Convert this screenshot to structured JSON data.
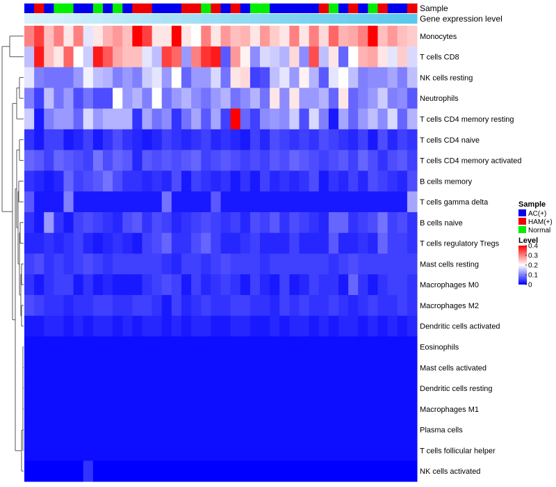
{
  "chart_data": {
    "type": "heatmap",
    "title": "",
    "annotation_labels": [
      "Sample",
      "Gene expression level"
    ],
    "rows": [
      "Monocytes",
      "T cells CD8",
      "NK cells resting",
      "Neutrophils",
      "T cells CD4 memory resting",
      "T cells CD4 naive",
      "T cells CD4 memory activated",
      "B cells memory",
      "T cells gamma delta",
      "B cells naive",
      "T cells regulatory  Tregs",
      "Mast cells resting",
      "Macrophages M0",
      "Macrophages M2",
      "Dendritic cells activated",
      "Eosinophils",
      "Mast cells activated",
      "Dendritic cells resting",
      "Macrophages M1",
      "Plasma cells",
      "T cells follicular helper",
      "NK cells activated"
    ],
    "samples": [
      "AC(+)",
      "HAM(+)",
      "AC(+)",
      "Normal",
      "Normal",
      "AC(+)",
      "AC(+)",
      "Normal",
      "AC(+)",
      "Normal",
      "AC(+)",
      "HAM(+)",
      "HAM(+)",
      "AC(+)",
      "AC(+)",
      "AC(+)",
      "HAM(+)",
      "HAM(+)",
      "Normal",
      "HAM(+)",
      "AC(+)",
      "HAM(+)",
      "AC(+)",
      "Normal",
      "Normal",
      "AC(+)",
      "AC(+)",
      "AC(+)",
      "AC(+)",
      "AC(+)",
      "HAM(+)",
      "Normal",
      "AC(+)",
      "HAM(+)",
      "AC(+)",
      "Normal",
      "HAM(+)",
      "AC(+)",
      "AC(+)",
      "HAM(+)"
    ],
    "gene_expression_level": [
      0.05,
      0.08,
      0.1,
      0.12,
      0.15,
      0.18,
      0.2,
      0.22,
      0.25,
      0.28,
      0.3,
      0.32,
      0.35,
      0.38,
      0.4,
      0.42,
      0.45,
      0.48,
      0.5,
      0.52,
      0.55,
      0.58,
      0.6,
      0.62,
      0.65,
      0.68,
      0.7,
      0.72,
      0.75,
      0.78,
      0.8,
      0.82,
      0.85,
      0.88,
      0.9,
      0.92,
      0.95,
      0.97,
      0.99,
      1.0
    ],
    "values": [
      [
        0.3,
        0.35,
        0.25,
        0.3,
        0.22,
        0.3,
        0.18,
        0.22,
        0.26,
        0.28,
        0.25,
        0.4,
        0.35,
        0.22,
        0.22,
        0.4,
        0.22,
        0.2,
        0.3,
        0.22,
        0.28,
        0.25,
        0.26,
        0.22,
        0.28,
        0.24,
        0.22,
        0.3,
        0.22,
        0.3,
        0.23,
        0.32,
        0.26,
        0.27,
        0.3,
        0.4,
        0.25,
        0.28,
        0.25,
        0.24
      ],
      [
        0.15,
        0.38,
        0.25,
        0.22,
        0.32,
        0.2,
        0.16,
        0.38,
        0.33,
        0.27,
        0.25,
        0.25,
        0.18,
        0.15,
        0.35,
        0.32,
        0.12,
        0.3,
        0.36,
        0.38,
        0.07,
        0.28,
        0.21,
        0.11,
        0.17,
        0.16,
        0.14,
        0.23,
        0.11,
        0.34,
        0.15,
        0.22,
        0.08,
        0.2,
        0.26,
        0.27,
        0.22,
        0.18,
        0.24,
        0.17
      ],
      [
        0.18,
        0.1,
        0.09,
        0.09,
        0.09,
        0.12,
        0.19,
        0.15,
        0.14,
        0.1,
        0.12,
        0.1,
        0.16,
        0.18,
        0.12,
        0.2,
        0.08,
        0.12,
        0.12,
        0.17,
        0.09,
        0.22,
        0.23,
        0.05,
        0.06,
        0.15,
        0.18,
        0.12,
        0.21,
        0.14,
        0.07,
        0.18,
        0.2,
        0.15,
        0.1,
        0.11,
        0.11,
        0.13,
        0.1,
        0.15
      ],
      [
        0.1,
        0.05,
        0.15,
        0.09,
        0.12,
        0.06,
        0.09,
        0.06,
        0.06,
        0.2,
        0.12,
        0.14,
        0.1,
        0.2,
        0.09,
        0.12,
        0.14,
        0.11,
        0.09,
        0.12,
        0.14,
        0.09,
        0.11,
        0.14,
        0.09,
        0.22,
        0.11,
        0.22,
        0.12,
        0.12,
        0.14,
        0.08,
        0.22,
        0.08,
        0.1,
        0.12,
        0.16,
        0.1,
        0.11,
        0.07
      ],
      [
        0.16,
        0.02,
        0.1,
        0.12,
        0.12,
        0.08,
        0.17,
        0.12,
        0.14,
        0.14,
        0.14,
        0.04,
        0.13,
        0.09,
        0.11,
        0.04,
        0.09,
        0.13,
        0.07,
        0.13,
        0.05,
        0.4,
        0.08,
        0.05,
        0.11,
        0.12,
        0.11,
        0.16,
        0.06,
        0.17,
        0.1,
        0.02,
        0.13,
        0.08,
        0.12,
        0.15,
        0.11,
        0.17,
        0.08,
        0.14
      ],
      [
        0.04,
        0.02,
        0.05,
        0.05,
        0.02,
        0.03,
        0.05,
        0.02,
        0.04,
        0.06,
        0.04,
        0.03,
        0.02,
        0.03,
        0.05,
        0.04,
        0.03,
        0.04,
        0.05,
        0.03,
        0.04,
        0.03,
        0.02,
        0.05,
        0.03,
        0.06,
        0.05,
        0.04,
        0.05,
        0.04,
        0.06,
        0.05,
        0.04,
        0.03,
        0.05,
        0.02,
        0.06,
        0.03,
        0.05,
        0.04
      ],
      [
        0.08,
        0.07,
        0.05,
        0.08,
        0.07,
        0.06,
        0.05,
        0.09,
        0.06,
        0.08,
        0.07,
        0.03,
        0.07,
        0.06,
        0.07,
        0.06,
        0.07,
        0.08,
        0.05,
        0.06,
        0.07,
        0.06,
        0.05,
        0.06,
        0.05,
        0.07,
        0.06,
        0.08,
        0.07,
        0.06,
        0.05,
        0.06,
        0.07,
        0.05,
        0.08,
        0.06,
        0.04,
        0.06,
        0.07,
        0.05
      ],
      [
        0.04,
        0.03,
        0.02,
        0.03,
        0.08,
        0.05,
        0.06,
        0.07,
        0.09,
        0.06,
        0.04,
        0.04,
        0.03,
        0.04,
        0.03,
        0.06,
        0.02,
        0.05,
        0.04,
        0.03,
        0.04,
        0.02,
        0.04,
        0.02,
        0.05,
        0.03,
        0.04,
        0.03,
        0.04,
        0.06,
        0.02,
        0.04,
        0.03,
        0.05,
        0.03,
        0.06,
        0.05,
        0.04,
        0.03,
        0.06
      ],
      [
        0.07,
        0.02,
        0.02,
        0.02,
        0.1,
        0.02,
        0.02,
        0.02,
        0.02,
        0.02,
        0.02,
        0.02,
        0.02,
        0.02,
        0.09,
        0.02,
        0.02,
        0.02,
        0.02,
        0.07,
        0.02,
        0.02,
        0.02,
        0.02,
        0.02,
        0.02,
        0.02,
        0.02,
        0.02,
        0.02,
        0.02,
        0.02,
        0.02,
        0.02,
        0.02,
        0.02,
        0.02,
        0.02,
        0.02,
        0.13
      ],
      [
        0.04,
        0.02,
        0.12,
        0.04,
        0.02,
        0.05,
        0.06,
        0.05,
        0.04,
        0.03,
        0.06,
        0.07,
        0.04,
        0.06,
        0.05,
        0.03,
        0.04,
        0.05,
        0.06,
        0.05,
        0.04,
        0.05,
        0.03,
        0.06,
        0.05,
        0.07,
        0.04,
        0.06,
        0.05,
        0.04,
        0.03,
        0.08,
        0.08,
        0.04,
        0.05,
        0.06,
        0.09,
        0.05,
        0.06,
        0.04
      ],
      [
        0.03,
        0.03,
        0.04,
        0.03,
        0.04,
        0.05,
        0.03,
        0.02,
        0.03,
        0.04,
        0.03,
        0.02,
        0.05,
        0.06,
        0.08,
        0.04,
        0.04,
        0.06,
        0.08,
        0.05,
        0.03,
        0.03,
        0.04,
        0.05,
        0.03,
        0.03,
        0.03,
        0.05,
        0.03,
        0.03,
        0.03,
        0.07,
        0.03,
        0.03,
        0.04,
        0.03,
        0.08,
        0.05,
        0.05,
        0.04
      ],
      [
        0.05,
        0.06,
        0.04,
        0.05,
        0.04,
        0.05,
        0.06,
        0.05,
        0.04,
        0.05,
        0.05,
        0.05,
        0.05,
        0.05,
        0.04,
        0.03,
        0.05,
        0.05,
        0.04,
        0.05,
        0.06,
        0.05,
        0.05,
        0.05,
        0.04,
        0.05,
        0.05,
        0.05,
        0.05,
        0.05,
        0.05,
        0.04,
        0.05,
        0.06,
        0.05,
        0.05,
        0.05,
        0.05,
        0.05,
        0.05
      ],
      [
        0.04,
        0.02,
        0.04,
        0.05,
        0.05,
        0.02,
        0.04,
        0.02,
        0.03,
        0.02,
        0.02,
        0.02,
        0.04,
        0.05,
        0.06,
        0.05,
        0.02,
        0.05,
        0.03,
        0.04,
        0.05,
        0.04,
        0.02,
        0.05,
        0.03,
        0.02,
        0.05,
        0.02,
        0.03,
        0.05,
        0.04,
        0.04,
        0.02,
        0.08,
        0.04,
        0.02,
        0.04,
        0.05,
        0.05,
        0.04
      ],
      [
        0.06,
        0.05,
        0.04,
        0.04,
        0.03,
        0.04,
        0.04,
        0.05,
        0.05,
        0.04,
        0.04,
        0.05,
        0.05,
        0.04,
        0.02,
        0.05,
        0.03,
        0.04,
        0.05,
        0.04,
        0.04,
        0.05,
        0.05,
        0.04,
        0.04,
        0.03,
        0.05,
        0.04,
        0.05,
        0.04,
        0.04,
        0.05,
        0.04,
        0.03,
        0.04,
        0.05,
        0.04,
        0.04,
        0.05,
        0.04
      ],
      [
        0.02,
        0.02,
        0.03,
        0.03,
        0.02,
        0.03,
        0.02,
        0.03,
        0.03,
        0.02,
        0.03,
        0.02,
        0.03,
        0.03,
        0.02,
        0.03,
        0.02,
        0.03,
        0.03,
        0.02,
        0.02,
        0.03,
        0.03,
        0.02,
        0.02,
        0.03,
        0.02,
        0.03,
        0.03,
        0.02,
        0.03,
        0.02,
        0.03,
        0.03,
        0.02,
        0.03,
        0.02,
        0.03,
        0.02,
        0.03
      ],
      [
        0.01,
        0.01,
        0.01,
        0.01,
        0.01,
        0.01,
        0.01,
        0.01,
        0.01,
        0.01,
        0.01,
        0.01,
        0.01,
        0.01,
        0.01,
        0.01,
        0.01,
        0.01,
        0.01,
        0.01,
        0.01,
        0.01,
        0.01,
        0.01,
        0.01,
        0.01,
        0.01,
        0.01,
        0.01,
        0.01,
        0.01,
        0.01,
        0.01,
        0.01,
        0.01,
        0.01,
        0.01,
        0.01,
        0.01,
        0.01
      ],
      [
        0.01,
        0.01,
        0.01,
        0.01,
        0.01,
        0.01,
        0.01,
        0.01,
        0.01,
        0.01,
        0.01,
        0.01,
        0.01,
        0.01,
        0.01,
        0.01,
        0.01,
        0.01,
        0.01,
        0.01,
        0.01,
        0.01,
        0.01,
        0.01,
        0.01,
        0.01,
        0.01,
        0.01,
        0.01,
        0.01,
        0.01,
        0.01,
        0.01,
        0.01,
        0.01,
        0.01,
        0.01,
        0.01,
        0.01,
        0.01
      ],
      [
        0.01,
        0.01,
        0.01,
        0.01,
        0.01,
        0.01,
        0.01,
        0.01,
        0.01,
        0.01,
        0.01,
        0.01,
        0.01,
        0.01,
        0.01,
        0.01,
        0.01,
        0.01,
        0.01,
        0.01,
        0.01,
        0.01,
        0.01,
        0.01,
        0.01,
        0.01,
        0.01,
        0.01,
        0.01,
        0.01,
        0.01,
        0.01,
        0.01,
        0.01,
        0.01,
        0.01,
        0.01,
        0.01,
        0.01,
        0.01
      ],
      [
        0.01,
        0.01,
        0.01,
        0.01,
        0.01,
        0.01,
        0.01,
        0.01,
        0.01,
        0.01,
        0.01,
        0.01,
        0.01,
        0.01,
        0.01,
        0.01,
        0.01,
        0.01,
        0.01,
        0.01,
        0.01,
        0.01,
        0.01,
        0.01,
        0.01,
        0.01,
        0.01,
        0.01,
        0.01,
        0.01,
        0.01,
        0.01,
        0.01,
        0.01,
        0.01,
        0.01,
        0.01,
        0.01,
        0.01,
        0.01
      ],
      [
        0.01,
        0.01,
        0.01,
        0.01,
        0.01,
        0.01,
        0.01,
        0.01,
        0.01,
        0.01,
        0.01,
        0.01,
        0.01,
        0.01,
        0.01,
        0.01,
        0.01,
        0.01,
        0.01,
        0.01,
        0.01,
        0.01,
        0.01,
        0.01,
        0.01,
        0.01,
        0.01,
        0.01,
        0.01,
        0.01,
        0.01,
        0.01,
        0.01,
        0.01,
        0.01,
        0.01,
        0.01,
        0.01,
        0.01,
        0.01
      ],
      [
        0.01,
        0.01,
        0.01,
        0.01,
        0.01,
        0.01,
        0.01,
        0.01,
        0.01,
        0.01,
        0.01,
        0.01,
        0.01,
        0.01,
        0.01,
        0.01,
        0.01,
        0.01,
        0.01,
        0.01,
        0.01,
        0.01,
        0.01,
        0.01,
        0.01,
        0.01,
        0.01,
        0.01,
        0.01,
        0.01,
        0.01,
        0.01,
        0.01,
        0.01,
        0.01,
        0.01,
        0.01,
        0.01,
        0.01,
        0.01
      ],
      [
        0.0,
        0.0,
        0.0,
        0.0,
        0.0,
        0.0,
        0.04,
        0.0,
        0.0,
        0.0,
        0.0,
        0.0,
        0.0,
        0.0,
        0.0,
        0.0,
        0.0,
        0.0,
        0.0,
        0.0,
        0.0,
        0.0,
        0.0,
        0.0,
        0.0,
        0.0,
        0.0,
        0.0,
        0.0,
        0.0,
        0.0,
        0.0,
        0.0,
        0.0,
        0.0,
        0.0,
        0.0,
        0.0,
        0.0,
        0.0
      ]
    ],
    "legend": {
      "sample_title": "Sample",
      "sample_entries": [
        {
          "label": "AC(+)",
          "color": "#0000ee"
        },
        {
          "label": "HAM(+)",
          "color": "#ee0000"
        },
        {
          "label": "Normal",
          "color": "#00ee00"
        }
      ],
      "level_title": "Level",
      "level_ticks": [
        "0.4",
        "0.3",
        "0.2",
        "0.1",
        "0"
      ],
      "level_range": [
        0,
        0.4
      ],
      "placement": "right"
    },
    "colors": {
      "low": "#0000ff",
      "mid": "#ffffff",
      "high": "#ff0000",
      "gene_low": "#e0f4fb",
      "gene_high": "#5ac8ec"
    }
  }
}
